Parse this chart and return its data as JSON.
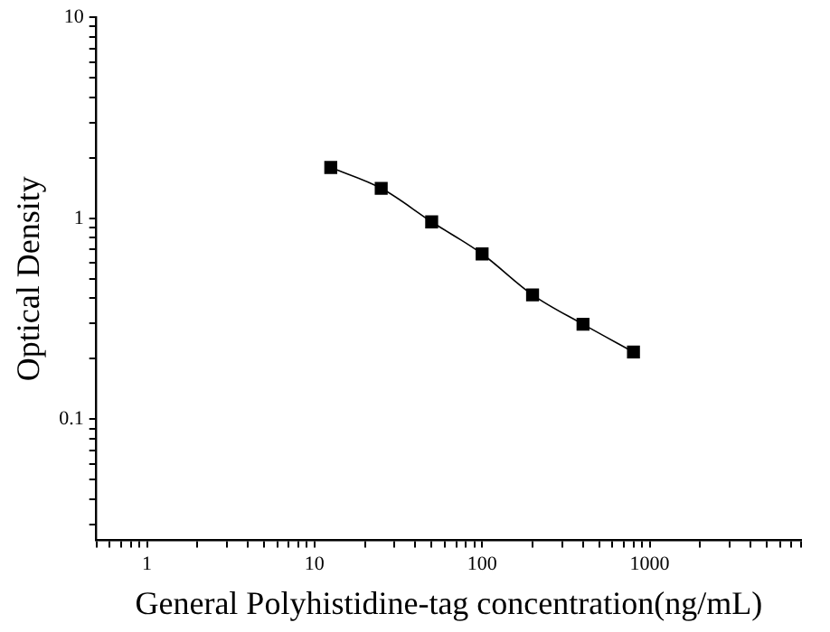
{
  "chart_data": {
    "type": "line",
    "xlabel": "General Polyhistidine-tag concentration(ng/mL)",
    "ylabel": "Optical Density",
    "log": "xy",
    "x": [
      12.5,
      25,
      50,
      100,
      200,
      400,
      800
    ],
    "series": [
      {
        "color": "#000000",
        "values": [
          1.79,
          1.41,
          0.96,
          0.665,
          0.416,
          0.297,
          0.216
        ]
      }
    ],
    "xlim": [
      0.5,
      8000
    ],
    "xticks": [
      {
        "value": 0.5,
        "label": null
      },
      {
        "value": 0.6,
        "label": null
      },
      {
        "value": 0.7,
        "label": null
      },
      {
        "value": 0.8,
        "label": null
      },
      {
        "value": 0.9,
        "label": null
      },
      1,
      {
        "value": 2,
        "label": null
      },
      {
        "value": 3,
        "label": null
      },
      {
        "value": 4,
        "label": null
      },
      {
        "value": 5,
        "label": null
      },
      {
        "value": 6,
        "label": null
      },
      {
        "value": 7,
        "label": null
      },
      {
        "value": 8,
        "label": null
      },
      {
        "value": 9,
        "label": null
      },
      10,
      {
        "value": 20,
        "label": null
      },
      {
        "value": 30,
        "label": null
      },
      {
        "value": 40,
        "label": null
      },
      {
        "value": 50,
        "label": null
      },
      {
        "value": 60,
        "label": null
      },
      {
        "value": 70,
        "label": null
      },
      {
        "value": 80,
        "label": null
      },
      {
        "value": 90,
        "label": null
      },
      100,
      {
        "value": 200,
        "label": null
      },
      {
        "value": 300,
        "label": null
      },
      {
        "value": 400,
        "label": null
      },
      {
        "value": 500,
        "label": null
      },
      {
        "value": 600,
        "label": null
      },
      {
        "value": 700,
        "label": null
      },
      {
        "value": 800,
        "label": null
      },
      {
        "value": 900,
        "label": null
      },
      1000,
      {
        "value": 2000,
        "label": null
      },
      {
        "value": 3000,
        "label": null
      },
      {
        "value": 4000,
        "label": null
      },
      {
        "value": 5000,
        "label": null
      },
      {
        "value": 6000,
        "label": null
      },
      {
        "value": 7000,
        "label": null
      },
      {
        "value": 8000,
        "label": null
      }
    ],
    "ylim": [
      0.025,
      10
    ],
    "yticks": [
      {
        "value": 0.03,
        "label": null
      },
      {
        "value": 0.04,
        "label": null
      },
      {
        "value": 0.05,
        "label": null
      },
      {
        "value": 0.06,
        "label": null
      },
      {
        "value": 0.07,
        "label": null
      },
      {
        "value": 0.08,
        "label": null
      },
      {
        "value": 0.09,
        "label": null
      },
      0.1,
      {
        "value": 0.2,
        "label": null
      },
      {
        "value": 0.3,
        "label": null
      },
      {
        "value": 0.4,
        "label": null
      },
      {
        "value": 0.5,
        "label": null
      },
      {
        "value": 0.6,
        "label": null
      },
      {
        "value": 0.7,
        "label": null
      },
      {
        "value": 0.8,
        "label": null
      },
      {
        "value": 0.9,
        "label": null
      },
      1,
      {
        "value": 2,
        "label": null
      },
      {
        "value": 3,
        "label": null
      },
      {
        "value": 4,
        "label": null
      },
      {
        "value": 5,
        "label": null
      },
      {
        "value": 6,
        "label": null
      },
      {
        "value": 7,
        "label": null
      },
      {
        "value": 8,
        "label": null
      },
      {
        "value": 9,
        "label": null
      },
      10
    ],
    "grid": false,
    "legend": false,
    "marker": "square",
    "line_style": "solid"
  }
}
